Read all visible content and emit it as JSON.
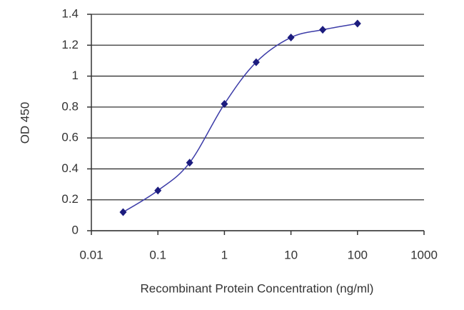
{
  "chart_data": {
    "type": "line",
    "x_label": "Recombinant Protein Concentration (ng/ml)",
    "y_label": "OD 450",
    "x": [
      0.03,
      0.1,
      0.3,
      1,
      3,
      10,
      30,
      100
    ],
    "values": [
      0.12,
      0.26,
      0.44,
      0.82,
      1.09,
      1.25,
      1.3,
      1.34
    ],
    "color": "#3c3ca8",
    "marker_color": "#1c1c7e",
    "xscale": "log",
    "xlim": [
      0.01,
      1000
    ],
    "xticks": [
      0.01,
      0.1,
      1,
      10,
      100,
      1000
    ],
    "ylim": [
      0,
      1.4
    ],
    "yticks": [
      0,
      0.2,
      0.4,
      0.6,
      0.8,
      1,
      1.2,
      1.4
    ],
    "grid": true
  }
}
